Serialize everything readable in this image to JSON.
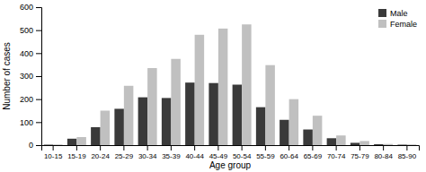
{
  "chart_data": {
    "type": "bar",
    "categories": [
      "10-15",
      "15-19",
      "20-24",
      "25-29",
      "30-34",
      "35-39",
      "40-44",
      "45-49",
      "50-54",
      "55-59",
      "60-64",
      "65-69",
      "70-74",
      "75-79",
      "80-84",
      "85-90"
    ],
    "series": [
      {
        "name": "Male",
        "color": "#3a3a3a",
        "values": [
          2,
          28,
          78,
          158,
          208,
          205,
          272,
          270,
          263,
          165,
          110,
          68,
          30,
          10,
          4,
          2
        ]
      },
      {
        "name": "Female",
        "color": "#c0c0c0",
        "values": [
          3,
          35,
          150,
          258,
          335,
          375,
          480,
          507,
          525,
          348,
          200,
          128,
          42,
          18,
          5,
          3
        ]
      }
    ],
    "xlabel": "Age group",
    "ylabel": "Number of cases",
    "ylim": [
      0,
      600
    ],
    "yticks": [
      0,
      100,
      200,
      300,
      400,
      500,
      600
    ],
    "legend": "upper right"
  }
}
